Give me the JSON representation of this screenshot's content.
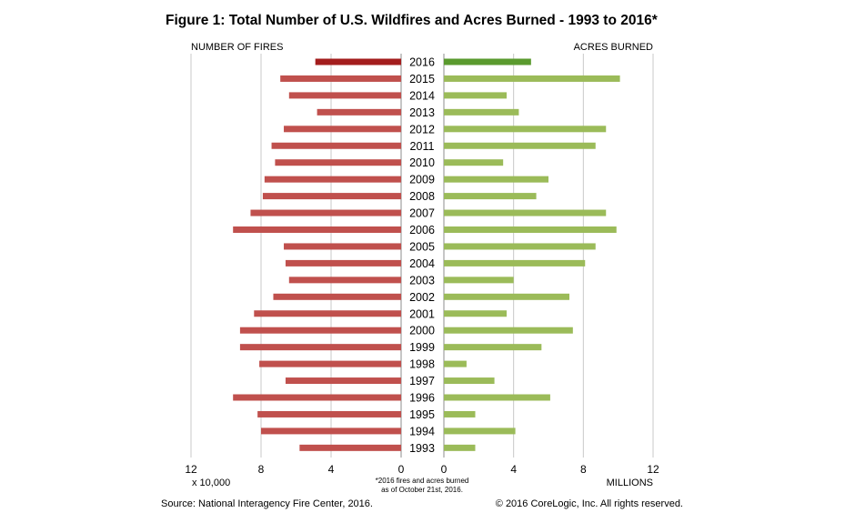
{
  "chart_data": {
    "type": "bar",
    "title": "Figure 1: Total Number of U.S. Wildfires and Acres Burned - 1993 to 2016*",
    "left_panel_label": "NUMBER OF FIRES",
    "right_panel_label": "ACRES BURNED",
    "left_unit_label": "x 10,000",
    "right_unit_label": "MILLIONS",
    "footnote_line1": "*2016 fires and acres burned",
    "footnote_line2": "as of October 21st, 2016.",
    "source": "Source: National Interagency Fire Center, 2016.",
    "copyright": "© 2016 CoreLogic, Inc. All rights reserved.",
    "categories": [
      "2016",
      "2015",
      "2014",
      "2013",
      "2012",
      "2011",
      "2010",
      "2009",
      "2008",
      "2007",
      "2006",
      "2005",
      "2004",
      "2003",
      "2002",
      "2001",
      "2000",
      "1999",
      "1998",
      "1997",
      "1996",
      "1995",
      "1994",
      "1993"
    ],
    "series": [
      {
        "name": "NUMBER OF FIRES",
        "values": [
          4.9,
          6.9,
          6.4,
          4.8,
          6.7,
          7.4,
          7.2,
          7.8,
          7.9,
          8.6,
          9.6,
          6.7,
          6.6,
          6.4,
          7.3,
          8.4,
          9.2,
          9.2,
          8.1,
          6.6,
          9.6,
          8.2,
          8.0,
          5.8
        ],
        "color": "#c0504d",
        "highlight_color": "#a31d1d"
      },
      {
        "name": "ACRES BURNED",
        "values": [
          5.0,
          10.1,
          3.6,
          4.3,
          9.3,
          8.7,
          3.4,
          6.0,
          5.3,
          9.3,
          9.9,
          8.7,
          8.1,
          4.0,
          7.2,
          3.6,
          7.4,
          5.6,
          1.3,
          2.9,
          6.1,
          1.8,
          4.1,
          1.8
        ],
        "color": "#9bbb59",
        "highlight_color": "#5a9a2e"
      }
    ],
    "x_ticks_left": [
      "12",
      "8",
      "4",
      "0"
    ],
    "x_ticks_right": [
      "0",
      "4",
      "8",
      "12"
    ],
    "xlim": [
      0,
      12
    ],
    "grid": true
  }
}
